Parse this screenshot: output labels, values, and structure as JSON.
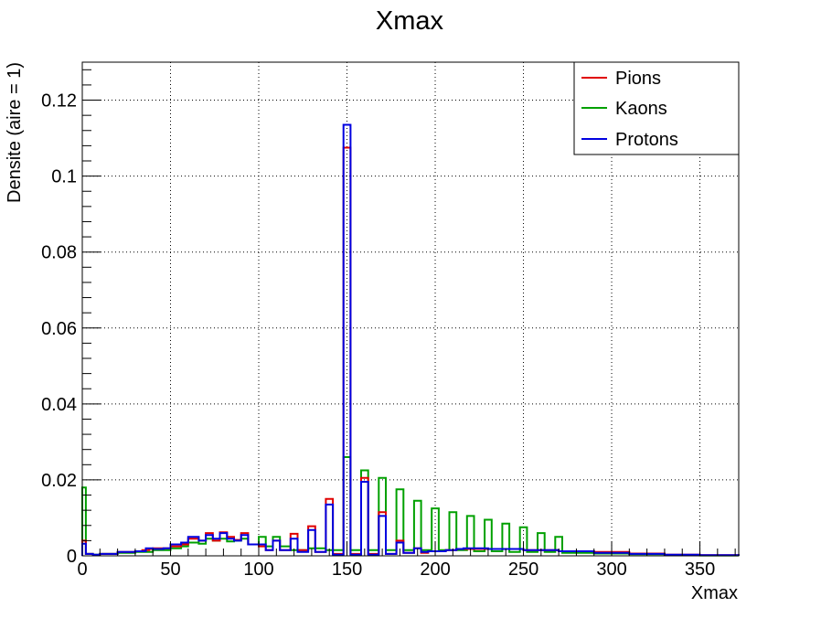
{
  "chart_data": {
    "type": "step-histogram",
    "title": "Xmax",
    "xlabel": "Xmax",
    "ylabel": "Densite (aire = 1)",
    "xlim": [
      0,
      372
    ],
    "ylim": [
      0,
      0.13
    ],
    "grid": true,
    "legend_position": "top-right",
    "x_ticks": [
      0,
      50,
      100,
      150,
      200,
      250,
      300,
      350
    ],
    "y_ticks": [
      0,
      0.02,
      0.04,
      0.06,
      0.08,
      0.1,
      0.12
    ],
    "x_tick_labels": [
      "0",
      "50",
      "100",
      "150",
      "200",
      "250",
      "300",
      "350"
    ],
    "y_tick_labels": [
      "0",
      "0.02",
      "0.04",
      "0.06",
      "0.08",
      "0.1",
      "0.12"
    ],
    "series": [
      {
        "name": "Pions",
        "color": "#e00000",
        "points": [
          [
            0,
            0.004
          ],
          [
            2,
            0.0005
          ],
          [
            6,
            0.0002
          ],
          [
            10,
            0.0005
          ],
          [
            20,
            0.001
          ],
          [
            30,
            0.0012
          ],
          [
            34,
            0.0015
          ],
          [
            38,
            0.0018
          ],
          [
            40,
            0.002
          ],
          [
            46,
            0.002
          ],
          [
            50,
            0.0025
          ],
          [
            56,
            0.003
          ],
          [
            60,
            0.0045
          ],
          [
            66,
            0.004
          ],
          [
            70,
            0.006
          ],
          [
            74,
            0.004
          ],
          [
            78,
            0.0062
          ],
          [
            82,
            0.005
          ],
          [
            86,
            0.0042
          ],
          [
            90,
            0.006
          ],
          [
            94,
            0.003
          ],
          [
            100,
            0.0025
          ],
          [
            104,
            0.0015
          ],
          [
            108,
            0.004
          ],
          [
            112,
            0.0015
          ],
          [
            118,
            0.0058
          ],
          [
            122,
            0.0015
          ],
          [
            128,
            0.0078
          ],
          [
            132,
            0.001
          ],
          [
            138,
            0.015
          ],
          [
            142,
            0.0005
          ],
          [
            148,
            0.1075
          ],
          [
            152,
            0.0005
          ],
          [
            158,
            0.0205
          ],
          [
            162,
            0.0005
          ],
          [
            168,
            0.0115
          ],
          [
            172,
            0.0005
          ],
          [
            178,
            0.004
          ],
          [
            182,
            0.0008
          ],
          [
            188,
            0.002
          ],
          [
            192,
            0.0008
          ],
          [
            196,
            0.0012
          ],
          [
            200,
            0.0012
          ],
          [
            206,
            0.0015
          ],
          [
            212,
            0.0018
          ],
          [
            216,
            0.0018
          ],
          [
            230,
            0.0018
          ],
          [
            250,
            0.0015
          ],
          [
            270,
            0.0012
          ],
          [
            290,
            0.001
          ],
          [
            310,
            0.0006
          ],
          [
            330,
            0.0003
          ],
          [
            350,
            0.0002
          ],
          [
            372,
            0.0001
          ]
        ]
      },
      {
        "name": "Kaons",
        "color": "#00a000",
        "points": [
          [
            0,
            0.018
          ],
          [
            2,
            0.0005
          ],
          [
            6,
            0.0003
          ],
          [
            10,
            0.0005
          ],
          [
            20,
            0.0008
          ],
          [
            30,
            0.001
          ],
          [
            40,
            0.0015
          ],
          [
            50,
            0.002
          ],
          [
            56,
            0.0025
          ],
          [
            60,
            0.0035
          ],
          [
            66,
            0.0032
          ],
          [
            70,
            0.0045
          ],
          [
            74,
            0.004
          ],
          [
            78,
            0.0045
          ],
          [
            82,
            0.0038
          ],
          [
            86,
            0.004
          ],
          [
            90,
            0.0045
          ],
          [
            94,
            0.003
          ],
          [
            100,
            0.005
          ],
          [
            104,
            0.0025
          ],
          [
            108,
            0.005
          ],
          [
            112,
            0.0025
          ],
          [
            118,
            0.0015
          ],
          [
            128,
            0.002
          ],
          [
            138,
            0.0015
          ],
          [
            148,
            0.026
          ],
          [
            152,
            0.0015
          ],
          [
            158,
            0.0225
          ],
          [
            162,
            0.0015
          ],
          [
            168,
            0.0205
          ],
          [
            172,
            0.0015
          ],
          [
            178,
            0.0175
          ],
          [
            182,
            0.0015
          ],
          [
            188,
            0.0145
          ],
          [
            192,
            0.0015
          ],
          [
            198,
            0.0125
          ],
          [
            202,
            0.0015
          ],
          [
            208,
            0.0115
          ],
          [
            212,
            0.0015
          ],
          [
            218,
            0.0105
          ],
          [
            222,
            0.0012
          ],
          [
            228,
            0.0095
          ],
          [
            232,
            0.0012
          ],
          [
            238,
            0.0085
          ],
          [
            242,
            0.001
          ],
          [
            248,
            0.0075
          ],
          [
            252,
            0.001
          ],
          [
            258,
            0.006
          ],
          [
            262,
            0.001
          ],
          [
            268,
            0.005
          ],
          [
            272,
            0.0008
          ],
          [
            290,
            0.0006
          ],
          [
            310,
            0.0004
          ],
          [
            330,
            0.0002
          ],
          [
            350,
            0.0001
          ],
          [
            372,
            0.0
          ]
        ]
      },
      {
        "name": "Protons",
        "color": "#0000e0",
        "points": [
          [
            0,
            0.0032
          ],
          [
            2,
            0.0005
          ],
          [
            6,
            0.0003
          ],
          [
            10,
            0.0005
          ],
          [
            20,
            0.001
          ],
          [
            30,
            0.0012
          ],
          [
            36,
            0.002
          ],
          [
            40,
            0.0018
          ],
          [
            46,
            0.002
          ],
          [
            50,
            0.003
          ],
          [
            56,
            0.0035
          ],
          [
            60,
            0.005
          ],
          [
            66,
            0.004
          ],
          [
            70,
            0.0055
          ],
          [
            74,
            0.0045
          ],
          [
            78,
            0.006
          ],
          [
            82,
            0.0045
          ],
          [
            86,
            0.004
          ],
          [
            90,
            0.0055
          ],
          [
            94,
            0.003
          ],
          [
            100,
            0.003
          ],
          [
            104,
            0.0015
          ],
          [
            108,
            0.004
          ],
          [
            112,
            0.0015
          ],
          [
            118,
            0.0045
          ],
          [
            122,
            0.001
          ],
          [
            128,
            0.0068
          ],
          [
            132,
            0.001
          ],
          [
            138,
            0.0135
          ],
          [
            142,
            0.0003
          ],
          [
            148,
            0.1135
          ],
          [
            152,
            0.0003
          ],
          [
            158,
            0.0195
          ],
          [
            162,
            0.0003
          ],
          [
            168,
            0.0105
          ],
          [
            172,
            0.0005
          ],
          [
            178,
            0.0035
          ],
          [
            182,
            0.0008
          ],
          [
            188,
            0.002
          ],
          [
            192,
            0.001
          ],
          [
            196,
            0.0012
          ],
          [
            200,
            0.0012
          ],
          [
            206,
            0.0015
          ],
          [
            212,
            0.0018
          ],
          [
            216,
            0.002
          ],
          [
            230,
            0.0018
          ],
          [
            250,
            0.0015
          ],
          [
            270,
            0.0012
          ],
          [
            290,
            0.0008
          ],
          [
            310,
            0.0005
          ],
          [
            330,
            0.0003
          ],
          [
            350,
            0.0002
          ],
          [
            372,
            0.0001
          ]
        ]
      }
    ]
  }
}
